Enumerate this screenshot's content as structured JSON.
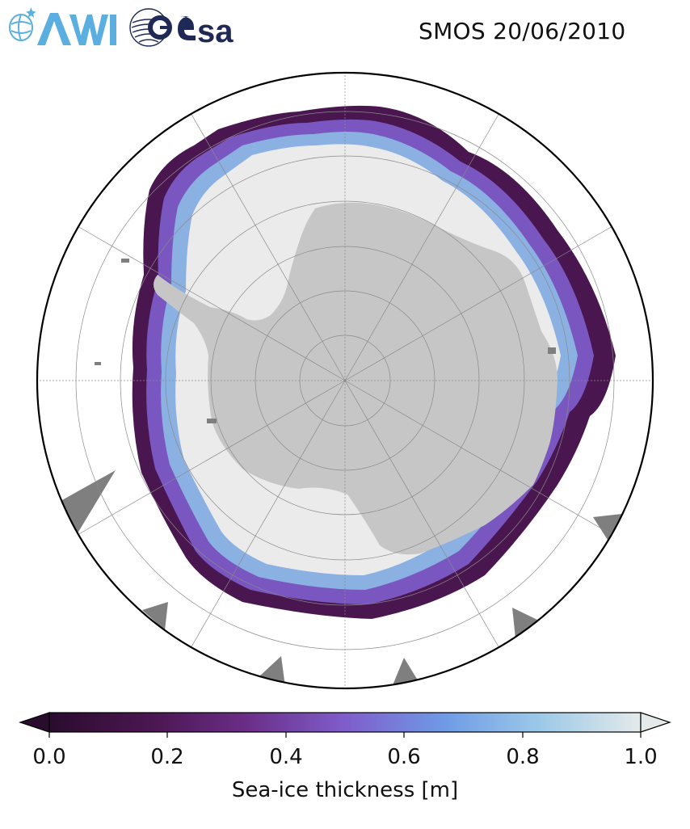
{
  "header": {
    "title": "SMOS 20/06/2010",
    "logos": [
      {
        "name": "AWI",
        "text": "AWI",
        "color": "#5aaee0"
      },
      {
        "name": "esa",
        "text": "esa",
        "color": "#1e2a55"
      }
    ]
  },
  "map": {
    "projection": "south-polar-stereographic",
    "colors": {
      "land": "#c6c6c6",
      "no_data_ice": "#ebebeb",
      "masked_sectors": "#7f7f7f",
      "ocean": "#ffffff",
      "graticule": "#8a8a8a",
      "boundary": "#000000"
    }
  },
  "colorbar": {
    "label": "Sea-ice thickness [m]",
    "ticks": [
      "0.0",
      "0.2",
      "0.4",
      "0.6",
      "0.8",
      "1.0"
    ],
    "tick_values": [
      0.0,
      0.2,
      0.4,
      0.6,
      0.8,
      1.0
    ],
    "range": [
      0.0,
      1.0
    ],
    "extend": "both",
    "colormap": [
      "#2a0c2e",
      "#4a1650",
      "#6a2d86",
      "#7f5dcc",
      "#6f9be6",
      "#9cc9e8",
      "#e4eaea"
    ]
  }
}
